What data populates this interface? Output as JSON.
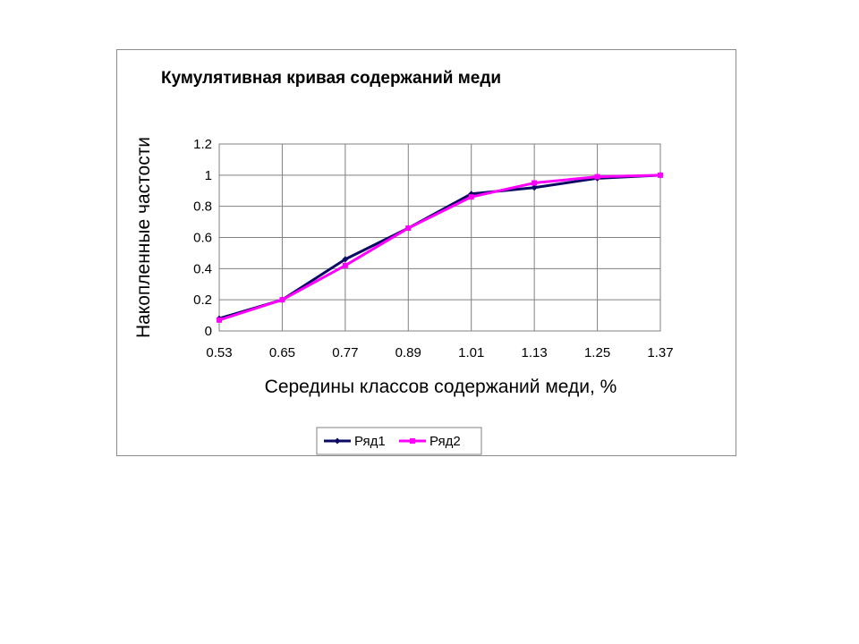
{
  "chart_data": {
    "type": "line",
    "title": "Кумулятивная кривая содержаний меди",
    "xlabel": "Середины классов содержаний меди, %",
    "ylabel": "Накопленные частости",
    "categories": [
      "0.53",
      "0.65",
      "0.77",
      "0.89",
      "1.01",
      "1.13",
      "1.25",
      "1.37"
    ],
    "y_ticks": [
      "0",
      "0.2",
      "0.4",
      "0.6",
      "0.8",
      "1",
      "1.2"
    ],
    "ylim": [
      0,
      1.2
    ],
    "grid": true,
    "legend_position": "bottom",
    "series": [
      {
        "name": "Ряд1",
        "color": "#0a0a64",
        "marker": "diamond",
        "values": [
          0.08,
          0.2,
          0.46,
          0.66,
          0.88,
          0.92,
          0.98,
          1.0
        ]
      },
      {
        "name": "Ряд2",
        "color": "#ff00ff",
        "marker": "square",
        "values": [
          0.07,
          0.2,
          0.42,
          0.66,
          0.86,
          0.95,
          0.99,
          1.0
        ]
      }
    ]
  }
}
